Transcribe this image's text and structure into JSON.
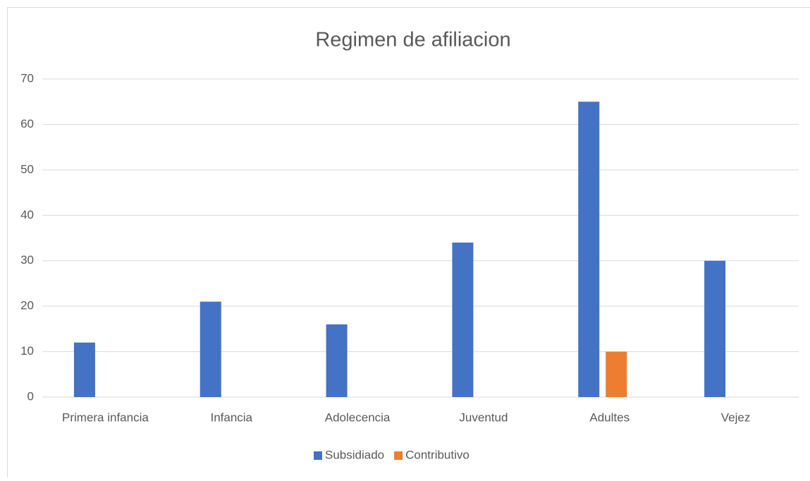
{
  "chart_data": {
    "type": "bar",
    "title": "Regimen de afiliacion",
    "categories": [
      "Primera infancia",
      "Infancia",
      "Adolecencia",
      "Juventud",
      "Adultes",
      "Vejez"
    ],
    "series": [
      {
        "name": "Subsidiado",
        "color": "#4472c4",
        "values": [
          12,
          21,
          16,
          34,
          65,
          30
        ]
      },
      {
        "name": "Contributivo",
        "color": "#ed7d31",
        "values": [
          null,
          null,
          null,
          null,
          10,
          null
        ]
      }
    ],
    "ylim": [
      0,
      70
    ],
    "yticks": [
      0,
      10,
      20,
      30,
      40,
      50,
      60,
      70
    ],
    "grid": true,
    "legend": "bottom"
  }
}
